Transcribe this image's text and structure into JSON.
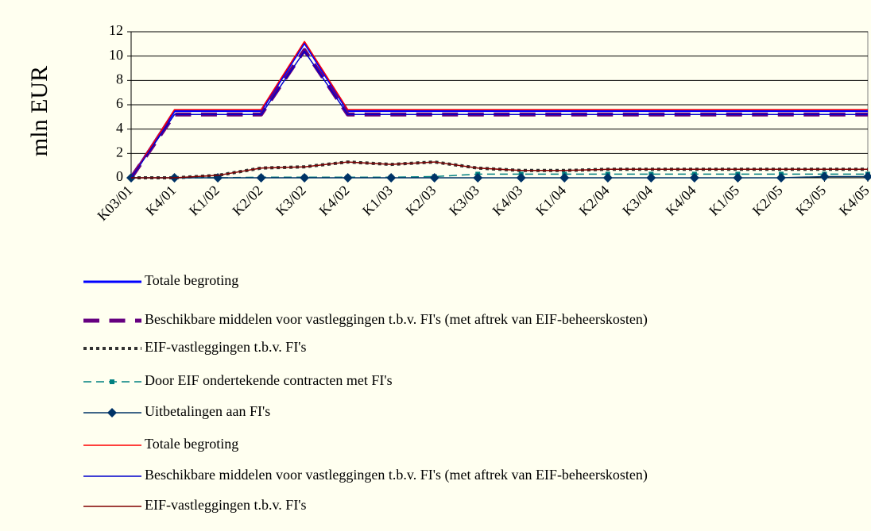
{
  "chart_data": {
    "type": "line",
    "y_label": "mln EUR",
    "categories": [
      "K03/01",
      "K4/01",
      "K1/02",
      "K2/02",
      "K3/02",
      "K4/02",
      "K1/03",
      "K2/03",
      "K3/03",
      "K4/03",
      "K1/04",
      "K2/04",
      "K3/04",
      "K4/04",
      "K1/05",
      "K2/05",
      "K3/05",
      "K4/05"
    ],
    "ylim": [
      0,
      12
    ],
    "yticks": [
      0,
      2,
      4,
      6,
      8,
      10,
      12
    ],
    "grid": true,
    "legend": "bottom",
    "series": [
      {
        "name": "Totale begroting",
        "color": "#0000ff",
        "width": 3,
        "dash": "solid",
        "values": [
          0,
          5.5,
          5.5,
          5.5,
          11.1,
          5.5,
          5.5,
          5.5,
          5.5,
          5.5,
          5.5,
          5.5,
          5.5,
          5.5,
          5.5,
          5.5,
          5.5,
          5.5
        ]
      },
      {
        "name": "Beschikbare middelen voor vastleggingen t.b.v. FI's (met aftrek van EIF-beheerskosten)",
        "color": "#660080",
        "width": 5,
        "dash": "dashed",
        "values": [
          0,
          5.2,
          5.2,
          5.2,
          10.5,
          5.2,
          5.2,
          5.2,
          5.2,
          5.2,
          5.2,
          5.2,
          5.2,
          5.2,
          5.2,
          5.2,
          5.2,
          5.2
        ]
      },
      {
        "name": "EIF-vastleggingen t.b.v. FI's",
        "color": "#333333",
        "width": 4,
        "dash": "dotted",
        "values": [
          0,
          0,
          0.2,
          0.8,
          0.9,
          1.3,
          1.1,
          1.3,
          0.8,
          0.6,
          0.6,
          0.7,
          0.7,
          0.7,
          0.7,
          0.7,
          0.7,
          0.7
        ]
      },
      {
        "name": "Door EIF ondertekende contracten met FI's",
        "color": "#008080",
        "width": 1.5,
        "dash": "dashed",
        "marker": "square",
        "values": [
          0,
          0,
          0,
          0.05,
          0.05,
          0.05,
          0.05,
          0.1,
          0.3,
          0.3,
          0.3,
          0.3,
          0.3,
          0.3,
          0.3,
          0.3,
          0.3,
          0.3
        ]
      },
      {
        "name": "Uitbetalingen aan FI's",
        "color": "#003366",
        "width": 1.5,
        "dash": "solid",
        "marker": "diamond",
        "values": [
          0,
          0,
          0,
          0,
          0,
          0,
          0,
          0,
          0,
          0,
          0,
          0,
          0,
          0,
          0,
          0,
          0.1,
          0.1
        ]
      },
      {
        "name": "Totale begroting",
        "color": "#ff0000",
        "width": 1.5,
        "dash": "solid",
        "values": [
          0,
          5.6,
          5.6,
          5.6,
          11.2,
          5.6,
          5.6,
          5.6,
          5.6,
          5.6,
          5.6,
          5.6,
          5.6,
          5.6,
          5.6,
          5.6,
          5.6,
          5.6
        ]
      },
      {
        "name": "Beschikbare middelen voor vastleggingen t.b.v. FI's (met aftrek van EIF-beheerskosten)",
        "color": "#0000cc",
        "width": 1.5,
        "dash": "solid",
        "values": [
          0,
          5.2,
          5.2,
          5.2,
          10.4,
          5.2,
          5.2,
          5.2,
          5.2,
          5.2,
          5.2,
          5.2,
          5.2,
          5.2,
          5.2,
          5.2,
          5.2,
          5.2
        ]
      },
      {
        "name": "EIF-vastleggingen t.b.v. FI's",
        "color": "#800000",
        "width": 1.5,
        "dash": "solid",
        "values": [
          0,
          0,
          0.2,
          0.8,
          0.9,
          1.3,
          1.1,
          1.3,
          0.8,
          0.6,
          0.6,
          0.7,
          0.7,
          0.7,
          0.7,
          0.7,
          0.7,
          0.7
        ]
      }
    ]
  }
}
